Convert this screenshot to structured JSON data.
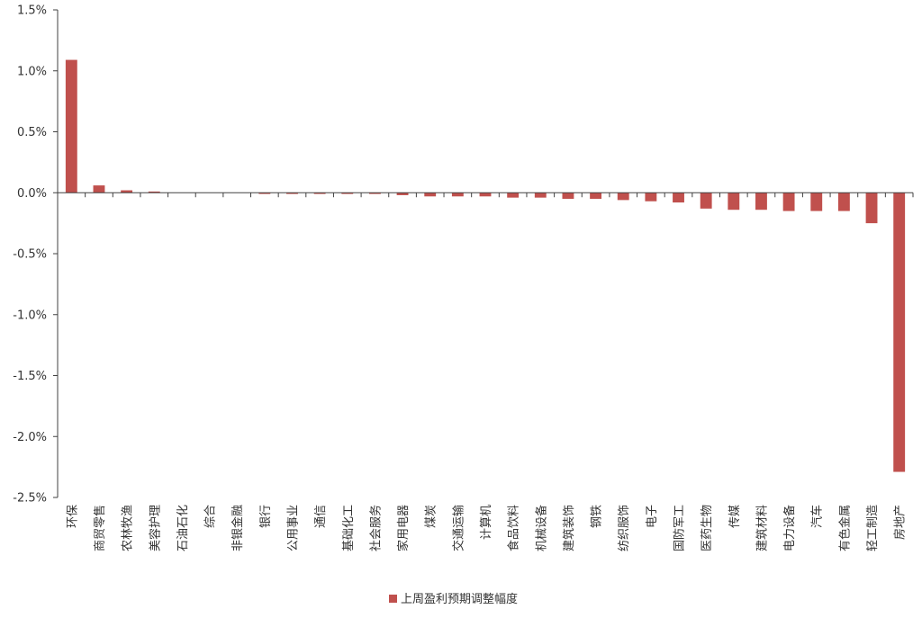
{
  "chart_data": {
    "type": "bar",
    "categories": [
      "环保",
      "商贸零售",
      "农林牧渔",
      "美容护理",
      "石油石化",
      "综合",
      "非银金融",
      "银行",
      "公用事业",
      "通信",
      "基础化工",
      "社会服务",
      "家用电器",
      "煤炭",
      "交通运输",
      "计算机",
      "食品饮料",
      "机械设备",
      "建筑装饰",
      "钢铁",
      "纺织服饰",
      "电子",
      "国防军工",
      "医药生物",
      "传媒",
      "建筑材料",
      "电力设备",
      "汽车",
      "有色金属",
      "轻工制造",
      "房地产"
    ],
    "series": [
      {
        "name": "上周盈利预期调整幅度",
        "values": [
          1.09,
          0.06,
          0.02,
          0.01,
          0.0,
          0.0,
          0.0,
          -0.01,
          -0.01,
          -0.01,
          -0.01,
          -0.01,
          -0.02,
          -0.03,
          -0.03,
          -0.03,
          -0.04,
          -0.04,
          -0.05,
          -0.05,
          -0.06,
          -0.07,
          -0.08,
          -0.13,
          -0.14,
          -0.14,
          -0.15,
          -0.15,
          -0.15,
          -0.25,
          -2.29
        ]
      }
    ],
    "ylim": [
      -2.5,
      1.5
    ],
    "yticks": [
      "1.5%",
      "1.0%",
      "0.5%",
      "0.0%",
      "-0.5%",
      "-1.0%",
      "-1.5%",
      "-2.0%",
      "-2.5%"
    ],
    "unit": "%",
    "grid": false,
    "legend_position": "bottom-center",
    "colors": {
      "bar": "#c0504d",
      "axis": "#404040"
    }
  }
}
